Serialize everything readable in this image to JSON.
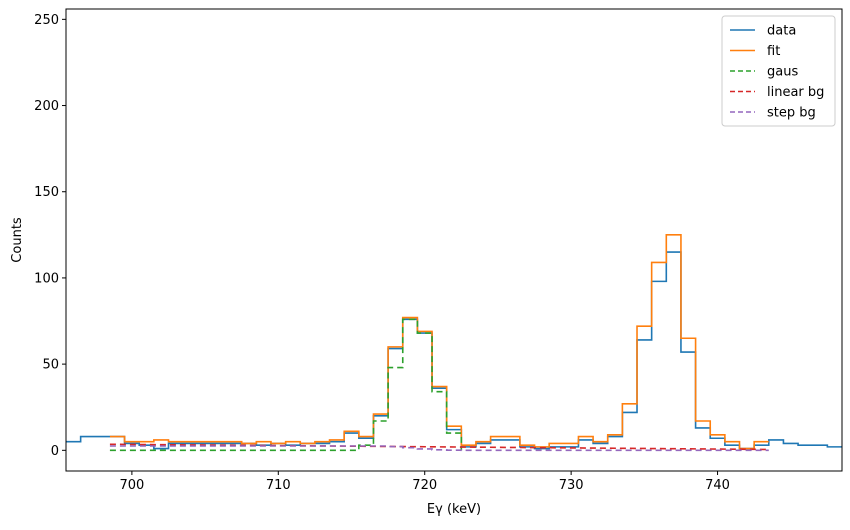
{
  "chart_data": {
    "type": "line",
    "xlabel": "Eγ (keV)",
    "ylabel": "Counts",
    "xlim": [
      695.5,
      748.5
    ],
    "ylim": [
      -12,
      256
    ],
    "xticks": [
      700,
      710,
      720,
      730,
      740
    ],
    "yticks": [
      0,
      50,
      100,
      150,
      200,
      250
    ],
    "grid": false,
    "legend_position": "top-right",
    "series": [
      {
        "name": "data",
        "color": "#1f77b4",
        "dash": "",
        "x": [
          695.5,
          696.5,
          697.5,
          698.5,
          699.5,
          700.5,
          701.5,
          702.5,
          703.5,
          704.5,
          705.5,
          706.5,
          707.5,
          708.5,
          709.5,
          710.5,
          711.5,
          712.5,
          713.5,
          714.5,
          715.5,
          716.5,
          717.5,
          718.5,
          719.5,
          720.5,
          721.5,
          722.5,
          723.5,
          724.5,
          725.5,
          726.5,
          727.5,
          728.5,
          729.5,
          730.5,
          731.5,
          732.5,
          733.5,
          734.5,
          735.5,
          736.5,
          737.5,
          738.5,
          739.5,
          740.5,
          741.5,
          742.5,
          743.5,
          744.5,
          745.5,
          746.5,
          747.5,
          748.5
        ],
        "y": [
          5,
          8,
          8,
          8,
          4,
          3,
          1,
          4,
          4,
          4,
          4,
          4,
          4,
          3,
          4,
          3,
          4,
          4,
          5,
          10,
          7,
          20,
          59,
          76,
          68,
          36,
          12,
          2,
          4,
          6,
          6,
          2,
          1,
          2,
          2,
          6,
          4,
          8,
          22,
          64,
          98,
          115,
          57,
          13,
          7,
          3,
          1,
          3,
          6,
          4,
          3,
          3,
          2,
          2
        ]
      },
      {
        "name": "fit",
        "color": "#ff7f0e",
        "dash": "",
        "x": [
          698.5,
          699.5,
          700.5,
          701.5,
          702.5,
          703.5,
          704.5,
          705.5,
          706.5,
          707.5,
          708.5,
          709.5,
          710.5,
          711.5,
          712.5,
          713.5,
          714.5,
          715.5,
          716.5,
          717.5,
          718.5,
          719.5,
          720.5,
          721.5,
          722.5,
          723.5,
          724.5,
          725.5,
          726.5,
          727.5,
          728.5,
          729.5,
          730.5,
          731.5,
          732.5,
          733.5,
          734.5,
          735.5,
          736.5,
          737.5,
          738.5,
          739.5,
          740.5,
          741.5,
          742.5,
          743.5
        ],
        "y": [
          8,
          5,
          5,
          6,
          5,
          5,
          5,
          5,
          5,
          4,
          5,
          4,
          5,
          4,
          5,
          6,
          11,
          8,
          21,
          60,
          77,
          69,
          37,
          14,
          3,
          5,
          8,
          8,
          3,
          2,
          4,
          4,
          8,
          5,
          9,
          27,
          72,
          109,
          125,
          65,
          17,
          9,
          5,
          1,
          5,
          5
        ]
      },
      {
        "name": "gaus",
        "color": "#2ca02c",
        "dash": "6,4",
        "x": [
          698.5,
          699.5,
          700.5,
          701.5,
          702.5,
          703.5,
          704.5,
          705.5,
          706.5,
          707.5,
          708.5,
          709.5,
          710.5,
          711.5,
          712.5,
          713.5,
          714.5,
          715.5,
          716.5,
          717.5,
          718.5,
          719.5,
          720.5,
          721.5,
          722.5
        ],
        "y": [
          0,
          0,
          0,
          0,
          0,
          0,
          0,
          0,
          0,
          0,
          0,
          0,
          0,
          0,
          0,
          0,
          0,
          3,
          17,
          48,
          76,
          68,
          34,
          10,
          0
        ]
      },
      {
        "name": "linear bg",
        "color": "#d62728",
        "dash": "6,4",
        "x": [
          698.5,
          743.5
        ],
        "y": [
          3.5,
          0.5
        ]
      },
      {
        "name": "step bg",
        "color": "#9467bd",
        "dash": "6,4",
        "x": [
          698.5,
          716.5,
          717.5,
          718.5,
          719.5,
          720.5,
          721.5,
          722.5,
          743.5
        ],
        "y": [
          2.5,
          2.5,
          2.2,
          1.5,
          0.8,
          0.3,
          0.1,
          0,
          0
        ]
      }
    ]
  }
}
